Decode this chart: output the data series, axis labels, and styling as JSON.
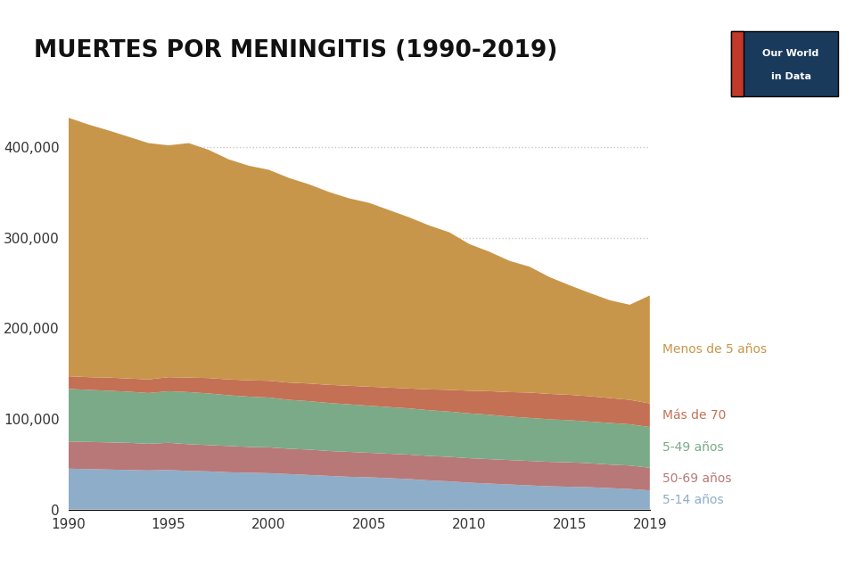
{
  "title": "MUERTES POR MENINGITIS (1990-2019)",
  "title_fontsize": 19,
  "background_color": "#ffffff",
  "years": [
    1990,
    1991,
    1992,
    1993,
    1994,
    1995,
    1996,
    1997,
    1998,
    1999,
    2000,
    2001,
    2002,
    2003,
    2004,
    2005,
    2006,
    2007,
    2008,
    2009,
    2010,
    2011,
    2012,
    2013,
    2014,
    2015,
    2016,
    2017,
    2018,
    2019
  ],
  "series": [
    {
      "label": "5-14 años",
      "color": "#8eadc8",
      "values": [
        45000,
        44500,
        44000,
        43500,
        43000,
        43500,
        42500,
        42000,
        41000,
        40500,
        40000,
        39000,
        38000,
        37000,
        36000,
        35500,
        34500,
        33500,
        32000,
        31000,
        29500,
        28500,
        27500,
        26500,
        25500,
        25000,
        24500,
        23500,
        22500,
        21000
      ]
    },
    {
      "label": "50-69 años",
      "color": "#b87878",
      "values": [
        30000,
        30000,
        30000,
        30000,
        29500,
        30000,
        29500,
        29000,
        29000,
        28500,
        28500,
        28000,
        28000,
        27500,
        27500,
        27000,
        27000,
        27000,
        27000,
        27000,
        27000,
        27000,
        27000,
        27000,
        27000,
        27000,
        26500,
        26000,
        26000,
        25000
      ]
    },
    {
      "label": "5-49 años",
      "color": "#7aaa88",
      "values": [
        58000,
        57500,
        57000,
        56500,
        56000,
        57000,
        57500,
        57000,
        56000,
        55500,
        55000,
        54000,
        53500,
        53000,
        52500,
        52000,
        51500,
        51000,
        50500,
        50000,
        49500,
        49000,
        48000,
        47500,
        47000,
        46500,
        46000,
        46000,
        45500,
        45000
      ]
    },
    {
      "label": "Más de 70",
      "color": "#c47055",
      "values": [
        14000,
        14000,
        14500,
        14500,
        15000,
        15500,
        16000,
        17000,
        17500,
        18000,
        18500,
        19000,
        19500,
        20000,
        20500,
        21000,
        21500,
        22000,
        23000,
        24000,
        25000,
        26000,
        27000,
        28000,
        28000,
        28000,
        28000,
        27500,
        27000,
        26000
      ]
    },
    {
      "label": "Menos de 5 años",
      "color": "#c8964a",
      "values": [
        285525,
        279000,
        273000,
        267000,
        261000,
        256000,
        259000,
        252000,
        243000,
        237000,
        233000,
        226000,
        220000,
        213000,
        207000,
        203000,
        196000,
        189000,
        181000,
        174000,
        162000,
        154000,
        145000,
        139000,
        129000,
        121000,
        114000,
        108000,
        105000,
        119222
      ]
    }
  ],
  "ylim": [
    0,
    450000
  ],
  "ytick_values": [
    0,
    100000,
    200000,
    300000,
    400000
  ],
  "grid_color": "#bbbbbb",
  "label_colors": {
    "Menos de 5 años": "#c8964a",
    "Más de 70": "#c47055",
    "5-49 años": "#7aaa88",
    "50-69 años": "#b87878",
    "5-14 años": "#8eadc8"
  },
  "logo_text1": "Our World",
  "logo_text2": "in Data",
  "logo_bg": "#1a3a5c",
  "logo_accent": "#c0392b"
}
